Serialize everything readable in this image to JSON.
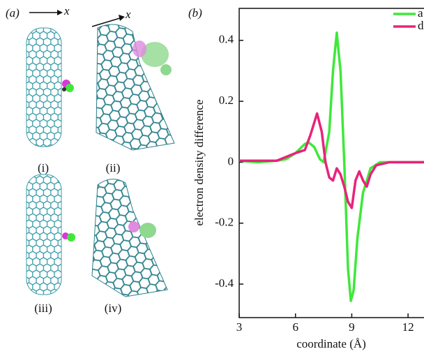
{
  "panel_a": {
    "label": "(a)",
    "axis_labels": [
      "x",
      "x"
    ],
    "subfigures": [
      "(i)",
      "(ii)",
      "(iii)",
      "(iv)"
    ]
  },
  "chart_data": {
    "type": "line",
    "panel_label": "(b)",
    "x_label": "coordinate (Å)",
    "y_label": "electron density difference",
    "xlim": [
      3,
      12.85
    ],
    "ylim": [
      -0.51,
      0.505
    ],
    "xticks": [
      3,
      6,
      9,
      12
    ],
    "yticks": [
      0.4,
      0.2,
      0,
      -0.2,
      -0.4
    ],
    "legend": "upper right",
    "series": [
      {
        "name": "a",
        "color": "#3ee83a",
        "x": [
          3,
          4,
          5,
          5.5,
          6,
          6.5,
          6.7,
          7,
          7.3,
          7.5,
          7.8,
          8.0,
          8.2,
          8.4,
          8.6,
          8.8,
          8.95,
          9.1,
          9.3,
          9.6,
          10,
          10.5,
          11,
          12,
          12.85
        ],
        "values": [
          0.005,
          0,
          0.005,
          0.01,
          0.03,
          0.06,
          0.065,
          0.05,
          0.01,
          0,
          0.1,
          0.3,
          0.425,
          0.3,
          0,
          -0.35,
          -0.455,
          -0.42,
          -0.25,
          -0.1,
          -0.02,
          0,
          0,
          0,
          0
        ]
      },
      {
        "name": "d",
        "color": "#e8237a",
        "x": [
          3,
          5,
          6,
          6.5,
          6.8,
          7.15,
          7.4,
          7.6,
          7.8,
          8.0,
          8.2,
          8.4,
          8.6,
          8.8,
          9.0,
          9.2,
          9.4,
          9.6,
          9.8,
          10.0,
          10.3,
          11,
          12.85
        ],
        "values": [
          0.005,
          0.005,
          0.03,
          0.04,
          0.09,
          0.16,
          0.1,
          0,
          -0.05,
          -0.06,
          -0.02,
          -0.04,
          -0.08,
          -0.13,
          -0.15,
          -0.06,
          -0.03,
          -0.06,
          -0.08,
          -0.04,
          -0.01,
          0,
          0
        ]
      }
    ]
  }
}
